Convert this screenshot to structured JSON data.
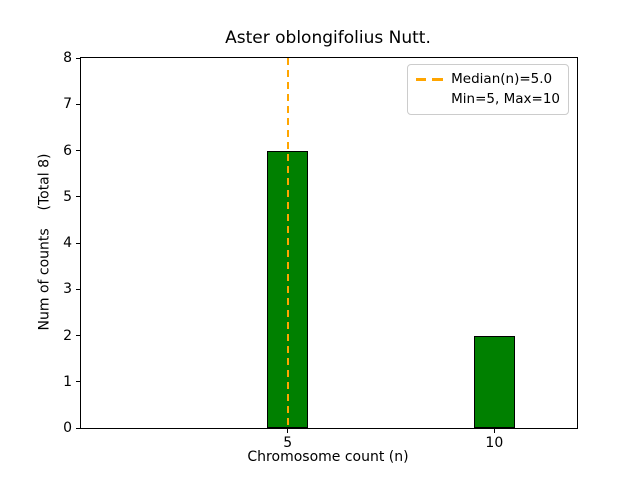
{
  "chart_data": {
    "type": "bar",
    "title": "Aster oblongifolius Nutt.",
    "xlabel": "Chromosome count (n)",
    "ylabel": "Num of counts    (Total 8)",
    "categories": [
      5,
      10
    ],
    "values": [
      6,
      2
    ],
    "bars": [
      {
        "x": 5,
        "count": 6
      },
      {
        "x": 10,
        "count": 2
      }
    ],
    "bar_width": 1,
    "total_counts": 8,
    "median": 5.0,
    "min": 5,
    "max": 10,
    "xlim": [
      0,
      12
    ],
    "ylim": [
      0,
      8
    ],
    "xticks": [
      "5",
      "10"
    ],
    "xtick_values": [
      5,
      10
    ],
    "yticks": [
      "0",
      "1",
      "2",
      "3",
      "4",
      "5",
      "6",
      "7",
      "8"
    ],
    "ytick_values": [
      0,
      1,
      2,
      3,
      4,
      5,
      6,
      7,
      8
    ],
    "grid": false,
    "legend": {
      "position": "upper right",
      "items": [
        "Median(n)=5.0",
        "Min=5, Max=10"
      ]
    },
    "colors": {
      "bar": "#008000",
      "bar_edge": "#000000",
      "median_line": "#FFA500",
      "legend_border": "#cccccc",
      "background": "#ffffff"
    }
  }
}
